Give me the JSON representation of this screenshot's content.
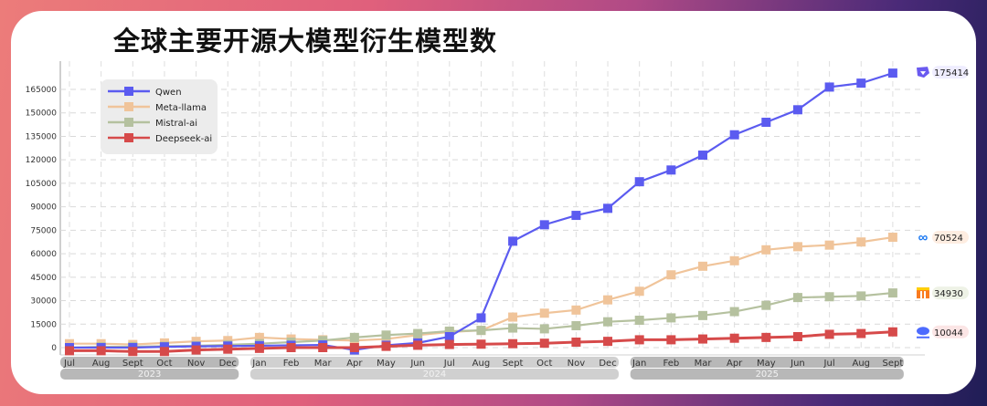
{
  "title": "全球主要开源大模型衍生模型数",
  "chart_data": {
    "type": "line",
    "title": "全球主要开源大模型衍生模型数",
    "xlabel": "",
    "ylabel": "",
    "ylim": [
      0,
      175000
    ],
    "yticks": [
      0,
      15000,
      30000,
      45000,
      60000,
      75000,
      90000,
      105000,
      120000,
      135000,
      150000,
      165000
    ],
    "grid": true,
    "legend_position": "upper-left",
    "x": [
      "Jul",
      "Aug",
      "Sept",
      "Oct",
      "Nov",
      "Dec",
      "Jan",
      "Feb",
      "Mar",
      "Apr",
      "May",
      "Jun",
      "Jul",
      "Aug",
      "Sept",
      "Oct",
      "Nov",
      "Dec",
      "Jan",
      "Feb",
      "Mar",
      "Apr",
      "May",
      "Jun",
      "Jul",
      "Aug",
      "Sept"
    ],
    "year_groups": [
      {
        "label": "2023",
        "months": [
          "Jul",
          "Aug",
          "Sept",
          "Oct",
          "Nov",
          "Dec"
        ]
      },
      {
        "label": "2024",
        "months": [
          "Jan",
          "Feb",
          "Mar",
          "Apr",
          "May",
          "Jun",
          "Jul",
          "Aug",
          "Sept",
          "Oct",
          "Nov",
          "Dec"
        ]
      },
      {
        "label": "2025",
        "months": [
          "Jan",
          "Feb",
          "Mar",
          "Apr",
          "May",
          "Jun",
          "Jul",
          "Aug",
          "Sept"
        ]
      }
    ],
    "series": [
      {
        "name": "Qwen",
        "color": "#5b5bf0",
        "values": [
          0,
          0,
          0,
          500,
          800,
          1000,
          1200,
          1500,
          1700,
          -1500,
          1500,
          3000,
          7000,
          19000,
          68000,
          78500,
          84500,
          89000,
          106000,
          113500,
          123000,
          136000,
          144000,
          152000,
          166500,
          169000,
          175414
        ]
      },
      {
        "name": "Meta-llama",
        "color": "#f0c49a",
        "values": [
          2500,
          2500,
          2000,
          3000,
          4000,
          4500,
          6500,
          5500,
          5000,
          4500,
          5500,
          8000,
          10000,
          11000,
          19500,
          22000,
          24000,
          30500,
          36000,
          46500,
          52000,
          55500,
          62500,
          64500,
          65500,
          67500,
          70524
        ]
      },
      {
        "name": "Mistral-ai",
        "color": "#b5c19f",
        "values": [
          0,
          500,
          600,
          900,
          1200,
          1800,
          2500,
          3500,
          4500,
          6500,
          8000,
          9000,
          10500,
          11000,
          12500,
          12000,
          14000,
          16500,
          17500,
          19000,
          20500,
          23000,
          27000,
          32000,
          32500,
          33000,
          34930
        ]
      },
      {
        "name": "Deepseek-ai",
        "color": "#d64a4a",
        "values": [
          -2000,
          -2000,
          -2500,
          -2500,
          -1500,
          -1000,
          -500,
          0,
          0,
          0,
          800,
          1500,
          2000,
          2200,
          2500,
          2800,
          3500,
          4000,
          5000,
          5000,
          5500,
          6000,
          6500,
          7000,
          8500,
          9000,
          10044
        ]
      }
    ],
    "end_labels": [
      {
        "series": "Qwen",
        "value": "175414",
        "icon": "qwen-logo-icon"
      },
      {
        "series": "Meta-llama",
        "value": "70524",
        "icon": "meta-logo-icon"
      },
      {
        "series": "Mistral-ai",
        "value": "34930",
        "icon": "mistral-logo-icon"
      },
      {
        "series": "Deepseek-ai",
        "value": "10044",
        "icon": "deepseek-logo-icon"
      }
    ]
  }
}
